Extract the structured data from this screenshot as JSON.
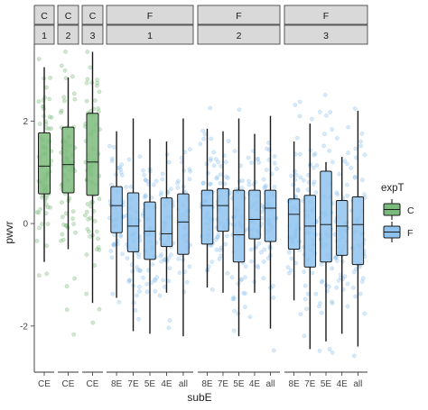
{
  "chart_data": {
    "type": "box",
    "xlabel": "subE",
    "ylabel": "pwvr",
    "ylim": [
      -2.9,
      3.5
    ],
    "yticks": [
      -2,
      0,
      2
    ],
    "grid": false,
    "legend": {
      "title": "expT",
      "position": "right",
      "items": [
        {
          "name": "C",
          "color": "#7dbb7d"
        },
        {
          "name": "F",
          "color": "#8fc3ef"
        }
      ]
    },
    "colors": {
      "C": "#7dbb7d",
      "F": "#8fc3ef",
      "strip_bg": "#d9d9d9",
      "point_C": "#7dbb7d",
      "point_F": "#8fc3ef"
    },
    "panels": [
      {
        "strip_top": "C",
        "strip_bottom": "1",
        "group": "C",
        "boxes": [
          {
            "x": "CE",
            "min": -0.75,
            "q1": 0.58,
            "median": 1.12,
            "q3": 1.77,
            "max": 3.05
          }
        ]
      },
      {
        "strip_top": "C",
        "strip_bottom": "2",
        "group": "C",
        "boxes": [
          {
            "x": "CE",
            "min": -0.5,
            "q1": 0.6,
            "median": 1.15,
            "q3": 1.88,
            "max": 2.85
          }
        ]
      },
      {
        "strip_top": "C",
        "strip_bottom": "3",
        "group": "C",
        "boxes": [
          {
            "x": "CE",
            "min": -1.55,
            "q1": 0.55,
            "median": 1.2,
            "q3": 2.15,
            "max": 3.35
          }
        ]
      },
      {
        "strip_top": "F",
        "strip_bottom": "1",
        "group": "F",
        "boxes": [
          {
            "x": "8E",
            "min": -1.45,
            "q1": -0.18,
            "median": 0.35,
            "q3": 0.72,
            "max": 1.8
          },
          {
            "x": "7E",
            "min": -2.1,
            "q1": -0.55,
            "median": -0.05,
            "q3": 0.6,
            "max": 2.05
          },
          {
            "x": "5E",
            "min": -2.15,
            "q1": -0.7,
            "median": -0.15,
            "q3": 0.42,
            "max": 1.65
          },
          {
            "x": "4E",
            "min": -1.35,
            "q1": -0.45,
            "median": -0.2,
            "q3": 0.5,
            "max": 1.6
          },
          {
            "x": "all",
            "min": -2.2,
            "q1": -0.6,
            "median": 0.03,
            "q3": 0.58,
            "max": 2.05
          }
        ]
      },
      {
        "strip_top": "F",
        "strip_bottom": "2",
        "group": "F",
        "boxes": [
          {
            "x": "8E",
            "min": -1.25,
            "q1": -0.4,
            "median": 0.35,
            "q3": 0.65,
            "max": 1.85
          },
          {
            "x": "7E",
            "min": -1.35,
            "q1": -0.15,
            "median": 0.35,
            "q3": 0.68,
            "max": 1.8
          },
          {
            "x": "5E",
            "min": -2.2,
            "q1": -0.75,
            "median": -0.22,
            "q3": 0.65,
            "max": 2.05
          },
          {
            "x": "4E",
            "min": -1.35,
            "q1": -0.3,
            "median": 0.08,
            "q3": 0.65,
            "max": 1.75
          },
          {
            "x": "all",
            "min": -2.05,
            "q1": -0.35,
            "median": 0.3,
            "q3": 0.65,
            "max": 2.1
          }
        ]
      },
      {
        "strip_top": "F",
        "strip_bottom": "3",
        "group": "F",
        "boxes": [
          {
            "x": "8E",
            "min": -1.5,
            "q1": -0.5,
            "median": 0.18,
            "q3": 0.48,
            "max": 1.6
          },
          {
            "x": "7E",
            "min": -2.45,
            "q1": -0.85,
            "median": -0.05,
            "q3": 0.55,
            "max": 1.95
          },
          {
            "x": "5E",
            "min": -2.3,
            "q1": -0.75,
            "median": -0.02,
            "q3": 1.02,
            "max": 1.2
          },
          {
            "x": "4E",
            "min": -2.15,
            "q1": -0.62,
            "median": -0.05,
            "q3": 0.45,
            "max": 1.3
          },
          {
            "x": "all",
            "min": -2.4,
            "q1": -0.8,
            "median": -0.02,
            "q3": 0.52,
            "max": 2.2
          }
        ]
      }
    ]
  }
}
